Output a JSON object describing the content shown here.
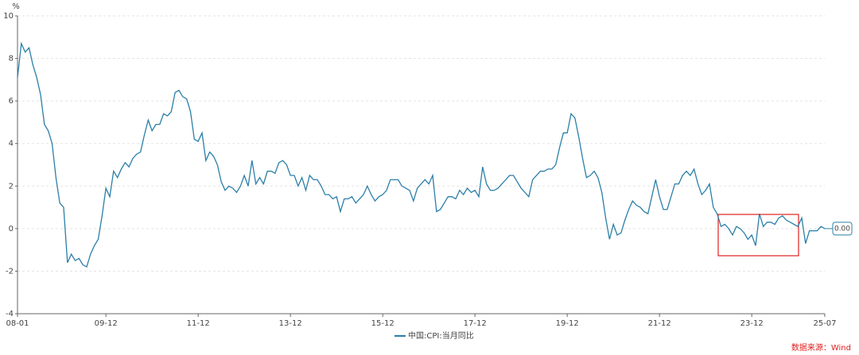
{
  "chart_data": {
    "type": "line",
    "y_unit": "%",
    "x": [
      "08-01",
      "08-02",
      "08-03",
      "08-04",
      "08-05",
      "08-06",
      "08-07",
      "08-08",
      "08-09",
      "08-10",
      "08-11",
      "08-12",
      "09-01",
      "09-02",
      "09-03",
      "09-04",
      "09-05",
      "09-06",
      "09-07",
      "09-08",
      "09-09",
      "09-10",
      "09-11",
      "09-12",
      "10-01",
      "10-02",
      "10-03",
      "10-04",
      "10-05",
      "10-06",
      "10-07",
      "10-08",
      "10-09",
      "10-10",
      "10-11",
      "10-12",
      "11-01",
      "11-02",
      "11-03",
      "11-04",
      "11-05",
      "11-06",
      "11-07",
      "11-08",
      "11-09",
      "11-10",
      "11-11",
      "11-12",
      "12-01",
      "12-02",
      "12-03",
      "12-04",
      "12-05",
      "12-06",
      "12-07",
      "12-08",
      "12-09",
      "12-10",
      "12-11",
      "12-12",
      "13-01",
      "13-02",
      "13-03",
      "13-04",
      "13-05",
      "13-06",
      "13-07",
      "13-08",
      "13-09",
      "13-10",
      "13-11",
      "13-12",
      "14-01",
      "14-02",
      "14-03",
      "14-04",
      "14-05",
      "14-06",
      "14-07",
      "14-08",
      "14-09",
      "14-10",
      "14-11",
      "14-12",
      "15-01",
      "15-02",
      "15-03",
      "15-04",
      "15-05",
      "15-06",
      "15-07",
      "15-08",
      "15-09",
      "15-10",
      "15-11",
      "15-12",
      "16-01",
      "16-02",
      "16-03",
      "16-04",
      "16-05",
      "16-06",
      "16-07",
      "16-08",
      "16-09",
      "16-10",
      "16-11",
      "16-12",
      "17-01",
      "17-02",
      "17-03",
      "17-04",
      "17-05",
      "17-06",
      "17-07",
      "17-08",
      "17-09",
      "17-10",
      "17-11",
      "17-12",
      "18-01",
      "18-02",
      "18-03",
      "18-04",
      "18-05",
      "18-06",
      "18-07",
      "18-08",
      "18-09",
      "18-10",
      "18-11",
      "18-12",
      "19-01",
      "19-02",
      "19-03",
      "19-04",
      "19-05",
      "19-06",
      "19-07",
      "19-08",
      "19-09",
      "19-10",
      "19-11",
      "19-12",
      "20-01",
      "20-02",
      "20-03",
      "20-04",
      "20-05",
      "20-06",
      "20-07",
      "20-08",
      "20-09",
      "20-10",
      "20-11",
      "20-12",
      "21-01",
      "21-02",
      "21-03",
      "21-04",
      "21-05",
      "21-06",
      "21-07",
      "21-08",
      "21-09",
      "21-10",
      "21-11",
      "21-12",
      "22-01",
      "22-02",
      "22-03",
      "22-04",
      "22-05",
      "22-06",
      "22-07",
      "22-08",
      "22-09",
      "22-10",
      "22-11",
      "22-12",
      "23-01",
      "23-02",
      "23-03",
      "23-04",
      "23-05",
      "23-06",
      "23-07",
      "23-08",
      "23-09",
      "23-10",
      "23-11",
      "23-12",
      "24-01",
      "24-02",
      "24-03",
      "24-04",
      "24-05",
      "24-06",
      "24-07",
      "24-08",
      "24-09",
      "24-10",
      "24-11",
      "24-12",
      "25-01",
      "25-02",
      "25-03",
      "25-04",
      "25-05",
      "25-06",
      "25-07"
    ],
    "xticks": [
      "08-01",
      "09-12",
      "11-12",
      "13-12",
      "15-12",
      "17-12",
      "19-12",
      "21-12",
      "23-12",
      "25-07"
    ],
    "series": [
      {
        "name": "中国:CPI:当月同比",
        "color": "#2b7fa8",
        "values": [
          7.1,
          8.7,
          8.3,
          8.5,
          7.7,
          7.1,
          6.3,
          4.9,
          4.6,
          4.0,
          2.4,
          1.2,
          1.0,
          -1.6,
          -1.2,
          -1.5,
          -1.4,
          -1.7,
          -1.8,
          -1.2,
          -0.8,
          -0.5,
          0.6,
          1.9,
          1.5,
          2.7,
          2.4,
          2.8,
          3.1,
          2.9,
          3.3,
          3.5,
          3.6,
          4.4,
          5.1,
          4.6,
          4.9,
          4.9,
          5.4,
          5.3,
          5.5,
          6.4,
          6.5,
          6.2,
          6.1,
          5.5,
          4.2,
          4.1,
          4.5,
          3.2,
          3.6,
          3.4,
          3.0,
          2.2,
          1.8,
          2.0,
          1.9,
          1.7,
          2.0,
          2.5,
          2.0,
          3.2,
          2.1,
          2.4,
          2.1,
          2.7,
          2.7,
          2.6,
          3.1,
          3.2,
          3.0,
          2.5,
          2.5,
          2.0,
          2.4,
          1.8,
          2.5,
          2.3,
          2.3,
          2.0,
          1.6,
          1.6,
          1.4,
          1.5,
          0.8,
          1.4,
          1.4,
          1.5,
          1.2,
          1.4,
          1.6,
          2.0,
          1.6,
          1.3,
          1.5,
          1.6,
          1.8,
          2.3,
          2.3,
          2.3,
          2.0,
          1.9,
          1.8,
          1.3,
          1.9,
          2.1,
          2.3,
          2.1,
          2.5,
          0.8,
          0.9,
          1.2,
          1.5,
          1.5,
          1.4,
          1.8,
          1.6,
          1.9,
          1.7,
          1.8,
          1.5,
          2.9,
          2.1,
          1.8,
          1.8,
          1.9,
          2.1,
          2.3,
          2.5,
          2.5,
          2.2,
          1.9,
          1.7,
          1.5,
          2.3,
          2.5,
          2.7,
          2.7,
          2.8,
          2.8,
          3.0,
          3.8,
          4.5,
          4.5,
          5.4,
          5.2,
          4.3,
          3.3,
          2.4,
          2.5,
          2.7,
          2.4,
          1.7,
          0.5,
          -0.5,
          0.2,
          -0.3,
          -0.2,
          0.4,
          0.9,
          1.3,
          1.1,
          1.0,
          0.8,
          0.7,
          1.5,
          2.3,
          1.5,
          0.9,
          0.9,
          1.5,
          2.1,
          2.1,
          2.5,
          2.7,
          2.5,
          2.8,
          2.1,
          1.6,
          1.8,
          2.1,
          1.0,
          0.7,
          0.1,
          0.2,
          0.0,
          -0.3,
          0.1,
          0.0,
          -0.2,
          -0.5,
          -0.3,
          -0.8,
          0.7,
          0.1,
          0.3,
          0.3,
          0.2,
          0.5,
          0.6,
          0.4,
          0.3,
          0.2,
          0.1,
          0.5,
          -0.7,
          -0.1,
          -0.1,
          -0.1,
          0.1,
          0.0
        ],
        "value_labels": [
          null,
          null,
          null,
          null,
          null,
          null,
          null,
          null,
          null,
          null,
          null,
          null,
          null,
          null,
          null,
          null,
          null,
          null,
          null,
          null,
          null,
          null,
          null,
          null,
          null,
          null,
          null,
          null,
          null,
          null,
          null,
          null,
          null,
          null,
          null,
          null,
          null,
          null,
          null,
          null,
          null,
          null,
          null,
          null,
          null,
          null,
          null,
          null,
          null,
          null,
          null,
          null,
          null,
          null,
          null,
          null,
          null,
          null,
          null,
          null,
          null,
          null,
          null,
          null,
          null,
          null,
          null,
          null,
          null,
          null,
          null,
          null,
          null,
          null,
          null,
          null,
          null,
          null,
          null,
          null,
          null,
          null,
          null,
          null,
          null,
          null,
          null,
          null,
          null,
          null,
          null,
          null,
          null,
          null,
          null,
          null,
          null,
          null,
          null,
          null,
          null,
          null,
          null,
          null,
          null,
          null,
          null,
          null,
          null,
          null,
          null,
          null,
          null,
          null,
          null,
          null,
          null,
          null,
          null,
          null,
          null,
          null,
          null,
          null,
          null,
          null,
          null,
          null,
          null,
          null,
          null,
          null,
          null,
          null,
          null,
          null,
          null,
          null,
          null,
          null,
          null,
          null,
          null,
          null,
          null,
          null,
          null,
          null,
          null,
          null,
          null,
          null,
          null,
          null,
          null,
          null,
          null,
          null,
          null,
          null,
          null,
          null,
          null,
          null,
          null,
          null,
          null,
          null,
          null,
          null,
          null,
          null,
          null,
          null,
          null,
          null,
          null,
          null,
          null,
          null,
          null,
          null,
          null,
          null,
          null,
          null,
          null,
          null,
          null,
          null,
          null,
          null,
          null,
          null,
          null,
          null,
          null,
          null,
          null,
          null,
          null,
          null,
          null,
          null,
          null,
          null,
          null,
          null,
          null,
          null,
          "0.00"
        ]
      }
    ],
    "ylim": [
      -4,
      10
    ],
    "yticks": [
      -4,
      -2,
      0,
      2,
      4,
      6,
      8,
      10
    ],
    "grid": true,
    "source": "数据来源：Wind"
  }
}
